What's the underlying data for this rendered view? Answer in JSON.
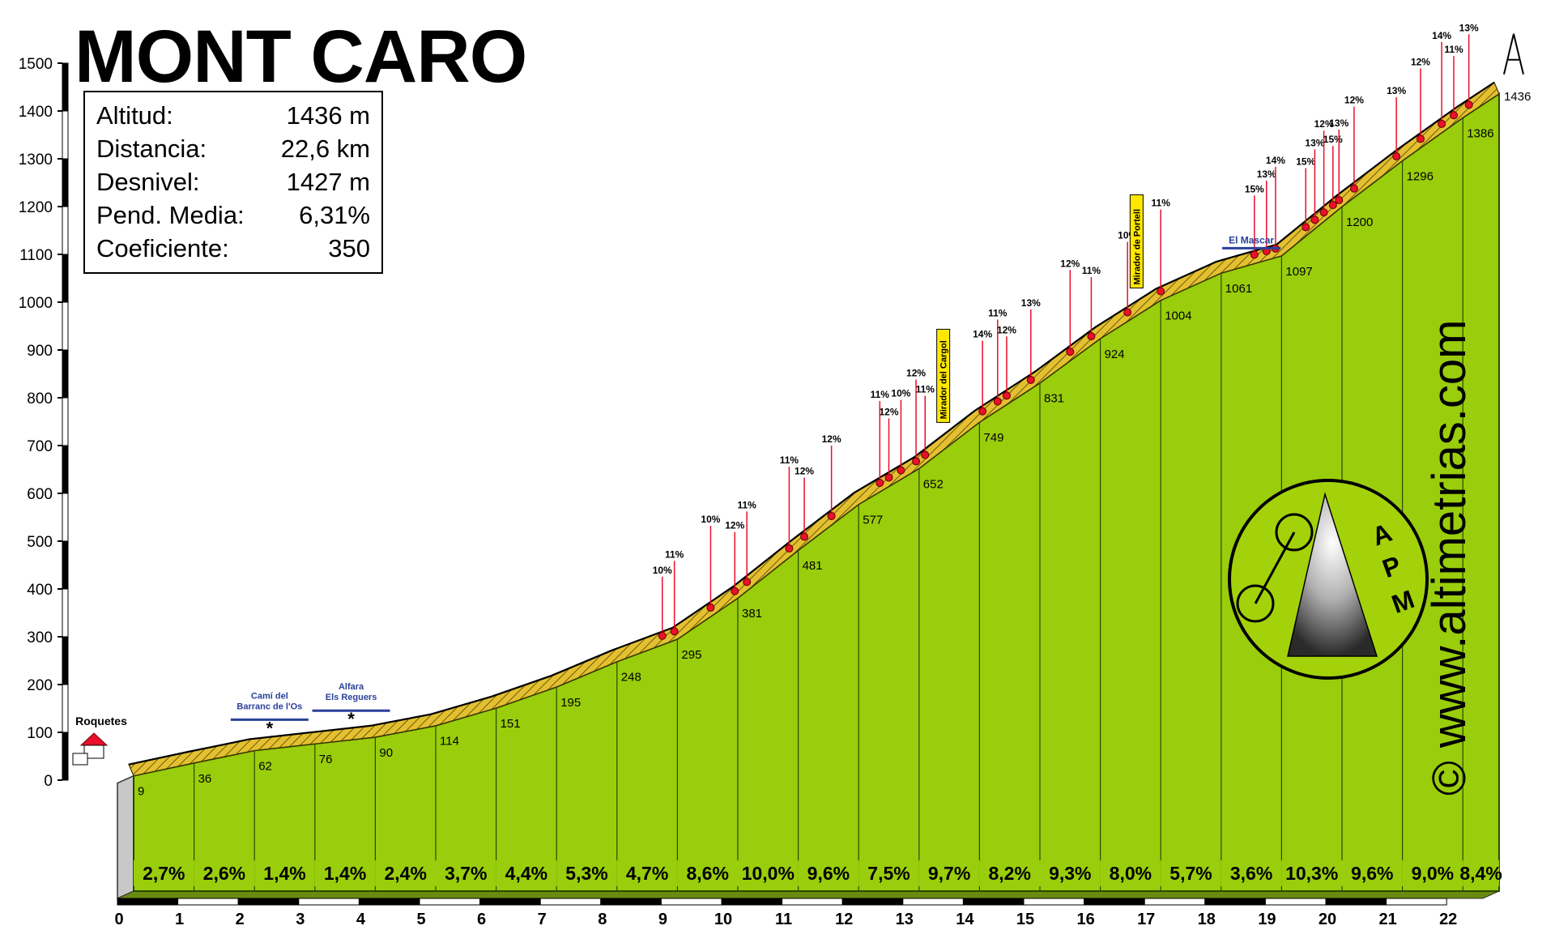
{
  "page": {
    "title": "MONT CARO",
    "stats": [
      {
        "label": "Altitud:",
        "value": "1436 m"
      },
      {
        "label": "Distancia:",
        "value": "22,6 km"
      },
      {
        "label": "Desnivel:",
        "value": "1427 m"
      },
      {
        "label": "Pend. Media:",
        "value": "6,31%"
      },
      {
        "label": "Coeficiente:",
        "value": "350"
      }
    ],
    "watermark": "© www.altimetrias.com",
    "logo_letters": [
      "A",
      "P",
      "M"
    ],
    "colors": {
      "fill_green": "#9acd0b",
      "side_grey": "#c8c8c8",
      "road_yellow": "#e4c030",
      "road_steep": "#8b5a2b",
      "marker_red": "#e8102a",
      "label_blue": "#2a3f99"
    }
  },
  "chart_data": {
    "type": "area",
    "title": "MONT CARO",
    "xlabel": "",
    "ylabel": "",
    "x_unit": "km",
    "y_unit": "m",
    "xlim": [
      0,
      22.6
    ],
    "ylim": [
      0,
      1500
    ],
    "x_ticks": [
      "0",
      "1",
      "2",
      "3",
      "4",
      "5",
      "6",
      "7",
      "8",
      "9",
      "10",
      "11",
      "12",
      "13",
      "14",
      "15",
      "16",
      "17",
      "18",
      "19",
      "20",
      "21",
      "22"
    ],
    "y_ticks": [
      "0",
      "100",
      "200",
      "300",
      "400",
      "500",
      "600",
      "700",
      "800",
      "900",
      "1000",
      "1100",
      "1200",
      "1300",
      "1400",
      "1500"
    ],
    "km_altitudes": [
      {
        "km": 0,
        "alt": 9,
        "label": "9"
      },
      {
        "km": 1,
        "alt": 36,
        "label": "36"
      },
      {
        "km": 2,
        "alt": 62,
        "label": "62"
      },
      {
        "km": 3,
        "alt": 76,
        "label": "76"
      },
      {
        "km": 4,
        "alt": 90,
        "label": "90"
      },
      {
        "km": 5,
        "alt": 114,
        "label": "114"
      },
      {
        "km": 6,
        "alt": 151,
        "label": "151"
      },
      {
        "km": 7,
        "alt": 195,
        "label": "195"
      },
      {
        "km": 8,
        "alt": 248,
        "label": "248"
      },
      {
        "km": 9,
        "alt": 295,
        "label": "295"
      },
      {
        "km": 10,
        "alt": 381,
        "label": "381"
      },
      {
        "km": 11,
        "alt": 481,
        "label": "481"
      },
      {
        "km": 12,
        "alt": 577,
        "label": "577"
      },
      {
        "km": 13,
        "alt": 652,
        "label": "652"
      },
      {
        "km": 14,
        "alt": 749,
        "label": "749"
      },
      {
        "km": 15,
        "alt": 831,
        "label": "831"
      },
      {
        "km": 16,
        "alt": 924,
        "label": "924"
      },
      {
        "km": 17,
        "alt": 1004,
        "label": "1004"
      },
      {
        "km": 18,
        "alt": 1061,
        "label": "1061"
      },
      {
        "km": 19,
        "alt": 1097,
        "label": "1097"
      },
      {
        "km": 20,
        "alt": 1200,
        "label": "1200"
      },
      {
        "km": 21,
        "alt": 1296,
        "label": "1296"
      },
      {
        "km": 22,
        "alt": 1386,
        "label": "1386"
      },
      {
        "km": 22.6,
        "alt": 1436,
        "label": "1436"
      }
    ],
    "segment_gradients": [
      "2,7%",
      "2,6%",
      "1,4%",
      "1,4%",
      "2,4%",
      "3,7%",
      "4,4%",
      "5,3%",
      "4,7%",
      "8,6%",
      "10,0%",
      "9,6%",
      "7,5%",
      "9,7%",
      "8,2%",
      "9,3%",
      "8,0%",
      "5,7%",
      "3,6%",
      "10,3%",
      "9,6%",
      "9,0%",
      "8,4%"
    ],
    "ramps": [
      {
        "km": 8.75,
        "label": "10%"
      },
      {
        "km": 8.95,
        "label": "11%"
      },
      {
        "km": 9.55,
        "label": "10%"
      },
      {
        "km": 9.95,
        "label": "12%"
      },
      {
        "km": 10.15,
        "label": "11%"
      },
      {
        "km": 10.85,
        "label": "11%"
      },
      {
        "km": 11.1,
        "label": "12%"
      },
      {
        "km": 11.55,
        "label": "12%"
      },
      {
        "km": 12.35,
        "label": "11%"
      },
      {
        "km": 12.5,
        "label": "12%"
      },
      {
        "km": 12.7,
        "label": "10%"
      },
      {
        "km": 12.95,
        "label": "12%"
      },
      {
        "km": 13.1,
        "label": "11%"
      },
      {
        "km": 14.05,
        "label": "14%"
      },
      {
        "km": 14.3,
        "label": "11%"
      },
      {
        "km": 14.45,
        "label": "12%"
      },
      {
        "km": 14.85,
        "label": "13%"
      },
      {
        "km": 15.5,
        "label": "12%"
      },
      {
        "km": 15.85,
        "label": "11%"
      },
      {
        "km": 16.45,
        "label": "10%"
      },
      {
        "km": 17.0,
        "label": "11%"
      },
      {
        "km": 18.55,
        "label": "15%"
      },
      {
        "km": 18.75,
        "label": "13%"
      },
      {
        "km": 18.9,
        "label": "14%"
      },
      {
        "km": 19.4,
        "label": "15%"
      },
      {
        "km": 19.55,
        "label": "13%"
      },
      {
        "km": 19.7,
        "label": "12%"
      },
      {
        "km": 19.85,
        "label": "15%"
      },
      {
        "km": 19.95,
        "label": "13%"
      },
      {
        "km": 20.2,
        "label": "12%"
      },
      {
        "km": 20.9,
        "label": "13%"
      },
      {
        "km": 21.3,
        "label": "12%"
      },
      {
        "km": 21.65,
        "label": "14%"
      },
      {
        "km": 21.85,
        "label": "11%"
      },
      {
        "km": 22.1,
        "label": "13%"
      }
    ],
    "annotations": [
      {
        "km": 0,
        "text": "Roquetes"
      },
      {
        "km": 2.25,
        "text": "Camí del Barranc de l'Os",
        "lines": [
          "Camí del",
          "Barranc de l'Os"
        ]
      },
      {
        "km": 3.6,
        "text": "Alfara Els Reguers",
        "lines": [
          "Alfara",
          "Els Reguers"
        ]
      },
      {
        "km": 13.4,
        "text": "Mirador del Cargol"
      },
      {
        "km": 16.6,
        "text": "Mirador de Portell"
      },
      {
        "km": 18.5,
        "text": "El Mascar"
      }
    ]
  }
}
